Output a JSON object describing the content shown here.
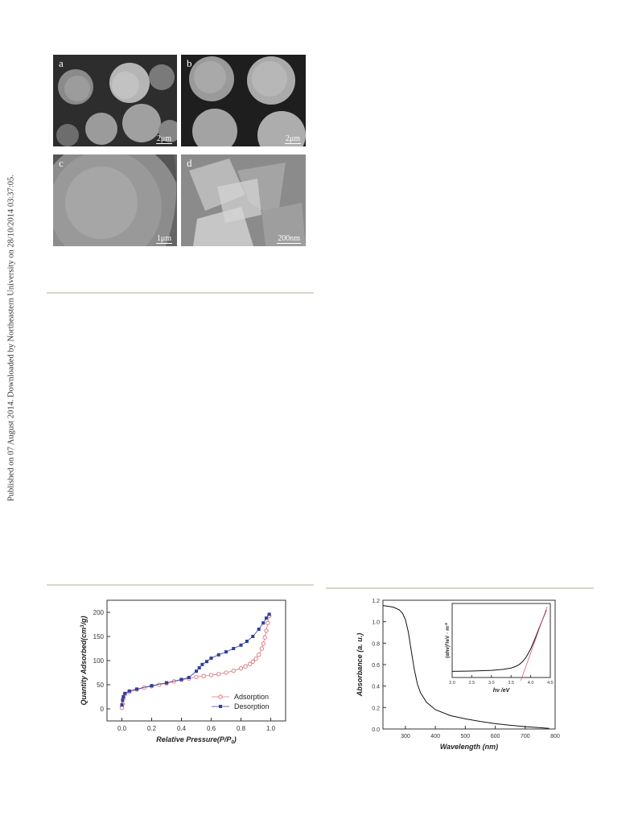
{
  "side_note": "Published on 07 August 2014. Downloaded by Northeastern University on 28/10/2014 03:37:05.",
  "sem": [
    {
      "label": "a",
      "scale": "2μm"
    },
    {
      "label": "b",
      "scale": "2μm"
    },
    {
      "label": "c",
      "scale": "1μm"
    },
    {
      "label": "d",
      "scale": "200nm"
    }
  ],
  "chart_data": [
    {
      "type": "scatter",
      "xlabel": "Relative Pressure(P/P",
      "xlabel_sub": "0",
      "xlabel_end": ")",
      "ylabel": "Quantity Adsorbed(cm",
      "ylabel_sup": "3",
      "ylabel_end": "/g)",
      "xlim": [
        -0.1,
        1.1
      ],
      "ylim": [
        -25,
        225
      ],
      "xticks": [
        "0.0",
        "0.2",
        "0.4",
        "0.6",
        "0.8",
        "1.0"
      ],
      "xtick_values": [
        0,
        0.2,
        0.4,
        0.6,
        0.8,
        1.0
      ],
      "yticks": [
        "0",
        "50",
        "100",
        "150",
        "200"
      ],
      "ytick_values": [
        0,
        50,
        100,
        150,
        200
      ],
      "legend_position": "bottom-right",
      "series": [
        {
          "name": "Adsorption",
          "color": "#e0707a",
          "marker": "open-circle",
          "x": [
            0.0,
            0.005,
            0.01,
            0.02,
            0.05,
            0.1,
            0.15,
            0.2,
            0.25,
            0.3,
            0.35,
            0.4,
            0.45,
            0.5,
            0.55,
            0.6,
            0.65,
            0.7,
            0.75,
            0.8,
            0.83,
            0.86,
            0.88,
            0.9,
            0.92,
            0.94,
            0.95,
            0.96,
            0.97,
            0.98,
            0.99
          ],
          "y": [
            2,
            10,
            22,
            30,
            35,
            40,
            44,
            47,
            50,
            53,
            57,
            60,
            63,
            66,
            68,
            70,
            72,
            75,
            79,
            84,
            88,
            93,
            98,
            104,
            112,
            125,
            135,
            148,
            162,
            178,
            193
          ]
        },
        {
          "name": "Desorption",
          "color": "#2e3f9e",
          "marker": "filled-square",
          "x": [
            0.99,
            0.97,
            0.95,
            0.92,
            0.88,
            0.84,
            0.8,
            0.75,
            0.7,
            0.65,
            0.6,
            0.57,
            0.54,
            0.52,
            0.5,
            0.45,
            0.4,
            0.3,
            0.2,
            0.1,
            0.05,
            0.02,
            0.01,
            0.005,
            0.0
          ],
          "y": [
            196,
            188,
            178,
            165,
            150,
            140,
            132,
            125,
            118,
            112,
            105,
            98,
            92,
            85,
            78,
            65,
            61,
            54,
            48,
            41,
            37,
            32,
            25,
            18,
            8
          ]
        }
      ]
    },
    {
      "type": "line",
      "xlabel": "Wavelength",
      "xlabel_unit": "(nm)",
      "ylabel": "Absorbance",
      "ylabel_unit": "(a. u.)",
      "xlim": [
        225,
        800
      ],
      "ylim": [
        0,
        1.2
      ],
      "xticks": [
        "300",
        "400",
        "500",
        "600",
        "700",
        "800"
      ],
      "xtick_values": [
        300,
        400,
        500,
        600,
        700,
        800
      ],
      "yticks": [
        "0.0",
        "0.2",
        "0.4",
        "0.6",
        "0.8",
        "1.0",
        "1.2"
      ],
      "ytick_values": [
        0,
        0.2,
        0.4,
        0.6,
        0.8,
        1.0,
        1.2
      ],
      "series": [
        {
          "color": "#111111",
          "x": [
            225,
            240,
            260,
            280,
            290,
            300,
            310,
            320,
            330,
            340,
            350,
            370,
            400,
            450,
            500,
            550,
            600,
            650,
            700,
            750,
            780
          ],
          "y": [
            1.15,
            1.145,
            1.135,
            1.11,
            1.08,
            1.02,
            0.9,
            0.72,
            0.55,
            0.42,
            0.34,
            0.25,
            0.18,
            0.125,
            0.095,
            0.07,
            0.05,
            0.035,
            0.022,
            0.012,
            0.006
          ]
        }
      ],
      "inset": {
        "xlabel": "hν /eV",
        "ylabel": "(αhν)",
        "ylabel_sup": "2",
        "ylabel_end": "/eV · m",
        "ylabel_end_sup": "-2",
        "xlim": [
          2.0,
          4.5
        ],
        "xticks": [
          "2.0",
          "2.5",
          "3.0",
          "3.5",
          "4.0",
          "4.5"
        ],
        "xtick_values": [
          2.0,
          2.5,
          3.0,
          3.5,
          4.0,
          4.5
        ],
        "curve": {
          "color": "#111111",
          "x": [
            2.0,
            2.5,
            3.0,
            3.3,
            3.5,
            3.6,
            3.7,
            3.8,
            3.9,
            4.0,
            4.1,
            4.2,
            4.3,
            4.4
          ],
          "y": [
            0.02,
            0.025,
            0.035,
            0.05,
            0.07,
            0.09,
            0.12,
            0.17,
            0.25,
            0.36,
            0.5,
            0.65,
            0.8,
            0.95
          ]
        },
        "fit_line": {
          "color": "#e05a6a",
          "x": [
            3.75,
            4.42
          ],
          "y": [
            -0.12,
            1.0
          ]
        }
      }
    }
  ]
}
